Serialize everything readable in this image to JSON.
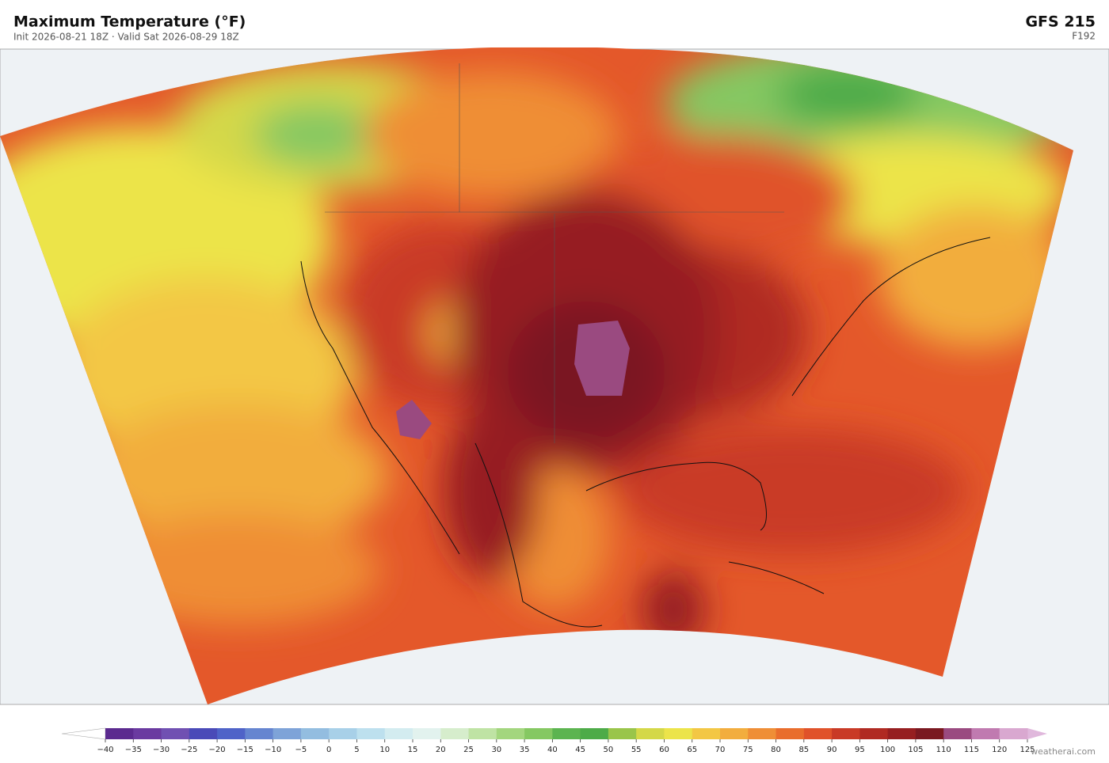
{
  "header": {
    "title": "Maximum Temperature  (°F)",
    "subtitle": "Init 2026-08-21 18Z   ·   Valid Sat 2026-08-29 18Z",
    "model": "GFS  215",
    "forecast_hour": "F192"
  },
  "colorbar": {
    "ticks": [
      {
        "value": -40,
        "label": "−40"
      },
      {
        "value": -35,
        "label": "−35"
      },
      {
        "value": -30,
        "label": "−30"
      },
      {
        "value": -25,
        "label": "−25"
      },
      {
        "value": -20,
        "label": "−20"
      },
      {
        "value": -15,
        "label": "−15"
      },
      {
        "value": -10,
        "label": "−10"
      },
      {
        "value": -5,
        "label": "−5"
      },
      0,
      5,
      10,
      15,
      20,
      25,
      30,
      35,
      40,
      45,
      50,
      55,
      60,
      65,
      70,
      75,
      80,
      85,
      90,
      95,
      100,
      105,
      110,
      115,
      120,
      125
    ],
    "colors": [
      "#5b2a8f",
      "#6a3aa0",
      "#7050b2",
      "#4a4ab8",
      "#4f63c8",
      "#6585d0",
      "#7ea3d8",
      "#93bde0",
      "#a8d0e8",
      "#bde0ee",
      "#d3ecf0",
      "#e2f2ee",
      "#d6edcc",
      "#bfe3a4",
      "#a3d67e",
      "#85c862",
      "#5cb450",
      "#4dab48",
      "#99c54a",
      "#d4d848",
      "#ece44a",
      "#f3c744",
      "#f2ad3e",
      "#ef8e36",
      "#e96d2c",
      "#e0522a",
      "#c93a26",
      "#b02a22",
      "#961e20",
      "#7a1820",
      "#9a4a80",
      "#c07ab0",
      "#d9a8d0"
    ],
    "under_color": "#ffffff",
    "over_color": "#e0b8dc"
  },
  "footer": {
    "credit": "weatherai.com"
  }
}
